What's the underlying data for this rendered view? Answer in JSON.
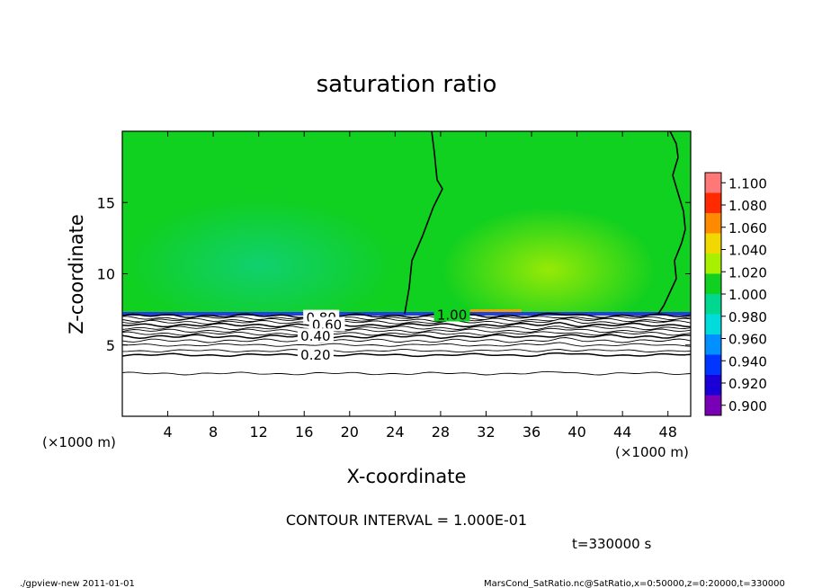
{
  "chart_data": {
    "type": "heatmap",
    "title": "saturation ratio",
    "xlabel": "X-coordinate",
    "ylabel": "Z-coordinate",
    "x_unit_left": "(×1000 m)",
    "x_unit_right": "(×1000 m)",
    "xlim": [
      0,
      50
    ],
    "ylim": [
      0,
      20
    ],
    "x_ticks": [
      4,
      8,
      12,
      16,
      20,
      24,
      28,
      32,
      36,
      40,
      44,
      48
    ],
    "y_ticks": [
      5,
      10,
      15
    ],
    "colorbar": {
      "levels": [
        "0.900",
        "0.920",
        "0.940",
        "0.960",
        "0.980",
        "1.000",
        "1.020",
        "1.040",
        "1.060",
        "1.080",
        "1.100"
      ],
      "colors": [
        "#7a00b8",
        "#1a00d6",
        "#0036ff",
        "#0090ff",
        "#00dcdc",
        "#00d890",
        "#10d020",
        "#a8f000",
        "#f0d800",
        "#ff8a00",
        "#ff2a00",
        "#ff7878"
      ]
    },
    "field": {
      "background_value": 0.995,
      "subsaturated_below_z": 7.2
    },
    "contours": [
      {
        "label": "1.00",
        "label_x": 29,
        "z": 7.1
      },
      {
        "label": "0.80",
        "label_x": 17.5,
        "z": 6.9
      },
      {
        "label": "0.60",
        "label_x": 18.0,
        "z": 6.4
      },
      {
        "label": "0.40",
        "label_x": 17.0,
        "z": 5.6
      },
      {
        "label": "0.20",
        "label_x": 17.0,
        "z": 4.3
      }
    ],
    "contour_interval": "CONTOUR INTERVAL = 1.000E-01",
    "time_label": "t=330000 s",
    "footer_left": "./gpview-new  2011-01-01",
    "footer_right": "MarsCond_SatRatio.nc@SatRatio,x=0:50000,z=0:20000,t=330000"
  }
}
